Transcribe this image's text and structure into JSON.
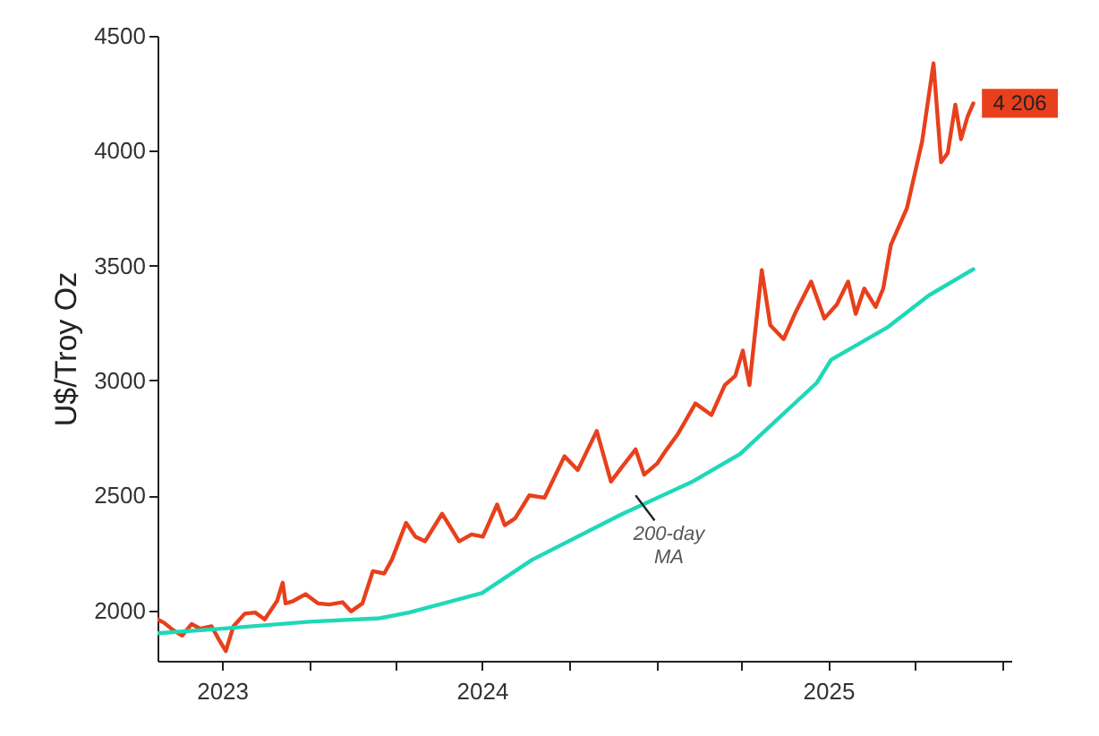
{
  "chart_data": {
    "type": "line",
    "ylabel": "U$/Troy Oz",
    "xlim": [
      "2023-07-25",
      "2026-01-10"
    ],
    "xticks": [
      {
        "value": "2023-10-01",
        "label": "2023"
      },
      {
        "value": "2024-01-01",
        "label": null
      },
      {
        "value": "2024-04-01",
        "label": null
      },
      {
        "value": "2024-07-01",
        "label": "2024"
      },
      {
        "value": "2024-10-01",
        "label": null
      },
      {
        "value": "2025-01-01",
        "label": null
      },
      {
        "value": "2025-04-01",
        "label": null
      },
      {
        "value": "2025-07-01",
        "label": "2025"
      },
      {
        "value": "2025-10-01",
        "label": null
      },
      {
        "value": "2026-01-01",
        "label": null
      }
    ],
    "ylim": [
      1780,
      4500
    ],
    "yticks": [
      2000,
      2500,
      3000,
      3500,
      4000,
      4500
    ],
    "marker": "none",
    "line_style": "solid",
    "annotations": [
      {
        "text": "200-day MA",
        "x": "2024-12-10",
        "y": 2500
      }
    ],
    "series": [
      {
        "color": "#e8401c",
        "x": [
          "2023-07-25",
          "2023-08-01",
          "2023-08-10",
          "2023-08-20",
          "2023-08-30",
          "2023-09-08",
          "2023-09-20",
          "2023-09-28",
          "2023-10-05",
          "2023-10-13",
          "2023-10-25",
          "2023-11-05",
          "2023-11-15",
          "2023-11-28",
          "2023-12-04",
          "2023-12-07",
          "2023-12-15",
          "2023-12-28",
          "2024-01-10",
          "2024-01-22",
          "2024-02-05",
          "2024-02-14",
          "2024-02-26",
          "2024-03-08",
          "2024-03-20",
          "2024-03-28",
          "2024-04-12",
          "2024-04-22",
          "2024-05-02",
          "2024-05-20",
          "2024-06-07",
          "2024-06-20",
          "2024-07-02",
          "2024-07-17",
          "2024-07-25",
          "2024-08-05",
          "2024-08-20",
          "2024-09-05",
          "2024-09-26",
          "2024-10-10",
          "2024-10-30",
          "2024-11-14",
          "2024-11-25",
          "2024-12-10",
          "2024-12-19",
          "2025-01-02",
          "2025-01-10",
          "2025-01-24",
          "2025-02-11",
          "2025-02-28",
          "2025-03-14",
          "2025-03-25",
          "2025-04-02",
          "2025-04-09",
          "2025-04-22",
          "2025-05-01",
          "2025-05-15",
          "2025-05-28",
          "2025-06-13",
          "2025-06-27",
          "2025-07-10",
          "2025-07-22",
          "2025-07-30",
          "2025-08-08",
          "2025-08-20",
          "2025-08-28",
          "2025-09-05",
          "2025-09-22",
          "2025-10-08",
          "2025-10-20",
          "2025-10-28",
          "2025-11-04",
          "2025-11-12",
          "2025-11-18",
          "2025-11-25",
          "2025-12-01"
        ],
        "values": [
          1960,
          1945,
          1915,
          1890,
          1940,
          1920,
          1930,
          1870,
          1822,
          1930,
          1985,
          1990,
          1960,
          2040,
          2120,
          2030,
          2040,
          2070,
          2030,
          2025,
          2035,
          1995,
          2030,
          2170,
          2160,
          2220,
          2380,
          2320,
          2300,
          2420,
          2300,
          2330,
          2320,
          2460,
          2370,
          2400,
          2500,
          2490,
          2670,
          2610,
          2780,
          2560,
          2620,
          2700,
          2590,
          2640,
          2690,
          2770,
          2900,
          2850,
          2980,
          3020,
          3130,
          2980,
          3480,
          3240,
          3180,
          3300,
          3430,
          3270,
          3330,
          3430,
          3290,
          3400,
          3320,
          3400,
          3590,
          3750,
          4040,
          4380,
          3950,
          3990,
          4200,
          4050,
          4150,
          4206
        ],
        "value_labels": [
          null,
          null,
          null,
          null,
          null,
          null,
          null,
          null,
          null,
          null,
          null,
          null,
          null,
          null,
          null,
          null,
          null,
          null,
          null,
          null,
          null,
          null,
          null,
          null,
          null,
          null,
          null,
          null,
          null,
          null,
          null,
          null,
          null,
          null,
          null,
          null,
          null,
          null,
          null,
          null,
          null,
          null,
          null,
          null,
          null,
          null,
          null,
          null,
          null,
          null,
          null,
          null,
          null,
          null,
          null,
          null,
          null,
          null,
          null,
          null,
          null,
          null,
          null,
          null,
          null,
          null,
          null,
          null,
          null,
          null,
          null,
          null,
          null,
          null,
          null,
          "4 206"
        ]
      },
      {
        "color": "#1fd8b8",
        "x": [
          "2023-07-25",
          "2023-10-01",
          "2024-01-01",
          "2024-03-15",
          "2024-04-15",
          "2024-07-01",
          "2024-08-23",
          "2024-11-24",
          "2025-02-08",
          "2025-03-30",
          "2025-06-19",
          "2025-07-04",
          "2025-09-01",
          "2025-10-15",
          "2025-12-01"
        ],
        "values": [
          1900,
          1920,
          1950,
          1965,
          1990,
          2075,
          2220,
          2415,
          2560,
          2680,
          2990,
          3090,
          3230,
          3370,
          3484
        ]
      }
    ]
  }
}
